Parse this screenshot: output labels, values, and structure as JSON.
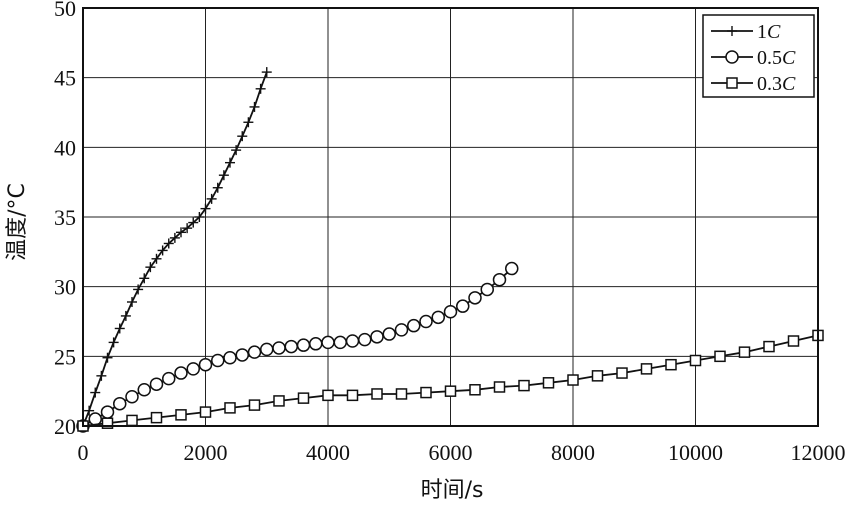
{
  "chart_data": {
    "type": "line",
    "xlabel": "时间/s",
    "ylabel": "温度/°C",
    "xlim": [
      0,
      12000
    ],
    "ylim": [
      20,
      50
    ],
    "xticks": [
      0,
      2000,
      4000,
      6000,
      8000,
      10000,
      12000
    ],
    "yticks": [
      20,
      25,
      30,
      35,
      40,
      45,
      50
    ],
    "xtick_labels": [
      "0",
      "2000",
      "4000",
      "6000",
      "8000",
      "10000",
      "12000"
    ],
    "ytick_labels": [
      "20",
      "25",
      "30",
      "35",
      "40",
      "45",
      "50"
    ],
    "grid": true,
    "legend_position": "top-right",
    "series": [
      {
        "name_prefix": "1",
        "name_unit": "C",
        "marker": "plus",
        "x": [
          0,
          100,
          200,
          300,
          400,
          500,
          600,
          700,
          800,
          900,
          1000,
          1100,
          1200,
          1300,
          1400,
          1500,
          1600,
          1700,
          1800,
          1900,
          2000,
          2100,
          2200,
          2300,
          2400,
          2500,
          2600,
          2700,
          2800,
          2900,
          3000
        ],
        "y": [
          20.0,
          21.1,
          22.4,
          23.6,
          24.9,
          26.0,
          27.0,
          27.9,
          28.9,
          29.8,
          30.6,
          31.4,
          32.0,
          32.6,
          33.1,
          33.5,
          33.9,
          34.2,
          34.6,
          35.0,
          35.6,
          36.3,
          37.1,
          38.0,
          38.9,
          39.8,
          40.8,
          41.8,
          42.9,
          44.2,
          45.4
        ]
      },
      {
        "name_prefix": "0.5",
        "name_unit": "C",
        "marker": "circle",
        "x": [
          0,
          200,
          400,
          600,
          800,
          1000,
          1200,
          1400,
          1600,
          1800,
          2000,
          2200,
          2400,
          2600,
          2800,
          3000,
          3200,
          3400,
          3600,
          3800,
          4000,
          4200,
          4400,
          4600,
          4800,
          5000,
          5200,
          5400,
          5600,
          5800,
          6000,
          6200,
          6400,
          6600,
          6800,
          7000
        ],
        "y": [
          20.0,
          20.5,
          21.0,
          21.6,
          22.1,
          22.6,
          23.0,
          23.4,
          23.8,
          24.1,
          24.4,
          24.7,
          24.9,
          25.1,
          25.3,
          25.5,
          25.6,
          25.7,
          25.8,
          25.9,
          26.0,
          26.0,
          26.1,
          26.2,
          26.4,
          26.6,
          26.9,
          27.2,
          27.5,
          27.8,
          28.2,
          28.6,
          29.2,
          29.8,
          30.5,
          31.3
        ]
      },
      {
        "name_prefix": "0.3",
        "name_unit": "C",
        "marker": "square",
        "x": [
          0,
          400,
          800,
          1200,
          1600,
          2000,
          2400,
          2800,
          3200,
          3600,
          4000,
          4400,
          4800,
          5200,
          5600,
          6000,
          6400,
          6800,
          7200,
          7600,
          8000,
          8400,
          8800,
          9200,
          9600,
          10000,
          10400,
          10800,
          11200,
          11600,
          12000
        ],
        "y": [
          20.0,
          20.2,
          20.4,
          20.6,
          20.8,
          21.0,
          21.3,
          21.5,
          21.8,
          22.0,
          22.2,
          22.2,
          22.3,
          22.3,
          22.4,
          22.5,
          22.6,
          22.8,
          22.9,
          23.1,
          23.3,
          23.6,
          23.8,
          24.1,
          24.4,
          24.7,
          25.0,
          25.3,
          25.7,
          26.1,
          26.5
        ]
      }
    ]
  }
}
